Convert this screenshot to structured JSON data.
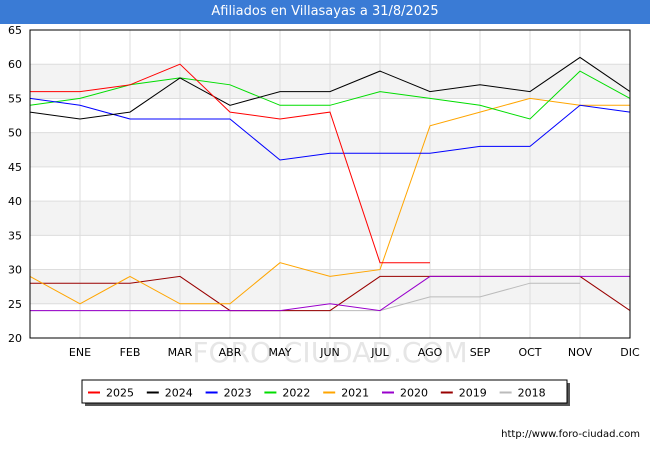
{
  "header": {
    "title": "Afiliados en Villasayas a 31/8/2025"
  },
  "watermark": "FORO-CIUDAD.COM",
  "source_url": "http://www.foro-ciudad.com",
  "chart_data": {
    "type": "line",
    "title": "Afiliados en Villasayas a 31/8/2025",
    "xlabel": "",
    "ylabel": "",
    "categories": [
      "",
      "ENE",
      "FEB",
      "MAR",
      "ABR",
      "MAY",
      "JUN",
      "JUL",
      "AGO",
      "SEP",
      "OCT",
      "NOV",
      "DIC"
    ],
    "ylim": [
      20,
      65
    ],
    "yticks": [
      20,
      25,
      30,
      35,
      40,
      45,
      50,
      55,
      60,
      65
    ],
    "grid": true,
    "legend_position": "bottom",
    "series": [
      {
        "name": "2025",
        "color": "#ff0000",
        "values": [
          56,
          56,
          57,
          60,
          53,
          52,
          53,
          31,
          31,
          null,
          null,
          null,
          null
        ]
      },
      {
        "name": "2024",
        "color": "#000000",
        "values": [
          53,
          52,
          53,
          58,
          54,
          56,
          56,
          59,
          56,
          57,
          56,
          61,
          56
        ]
      },
      {
        "name": "2023",
        "color": "#0000ff",
        "values": [
          55,
          54,
          52,
          52,
          52,
          46,
          47,
          47,
          47,
          48,
          48,
          54,
          53
        ]
      },
      {
        "name": "2022",
        "color": "#00dd00",
        "values": [
          54,
          55,
          57,
          58,
          57,
          54,
          54,
          56,
          55,
          54,
          52,
          59,
          55
        ]
      },
      {
        "name": "2021",
        "color": "#ffa500",
        "values": [
          29,
          25,
          29,
          25,
          25,
          31,
          29,
          30,
          51,
          53,
          55,
          54,
          54
        ]
      },
      {
        "name": "2020",
        "color": "#9900cc",
        "values": [
          24,
          24,
          24,
          24,
          24,
          24,
          25,
          24,
          29,
          29,
          29,
          29,
          29
        ]
      },
      {
        "name": "2019",
        "color": "#990000",
        "values": [
          28,
          28,
          28,
          29,
          24,
          24,
          24,
          29,
          29,
          29,
          29,
          29,
          24
        ]
      },
      {
        "name": "2018",
        "color": "#bbbbbb",
        "values": [
          24,
          24,
          24,
          24,
          24,
          24,
          24,
          24,
          26,
          26,
          28,
          28,
          null
        ]
      }
    ]
  }
}
